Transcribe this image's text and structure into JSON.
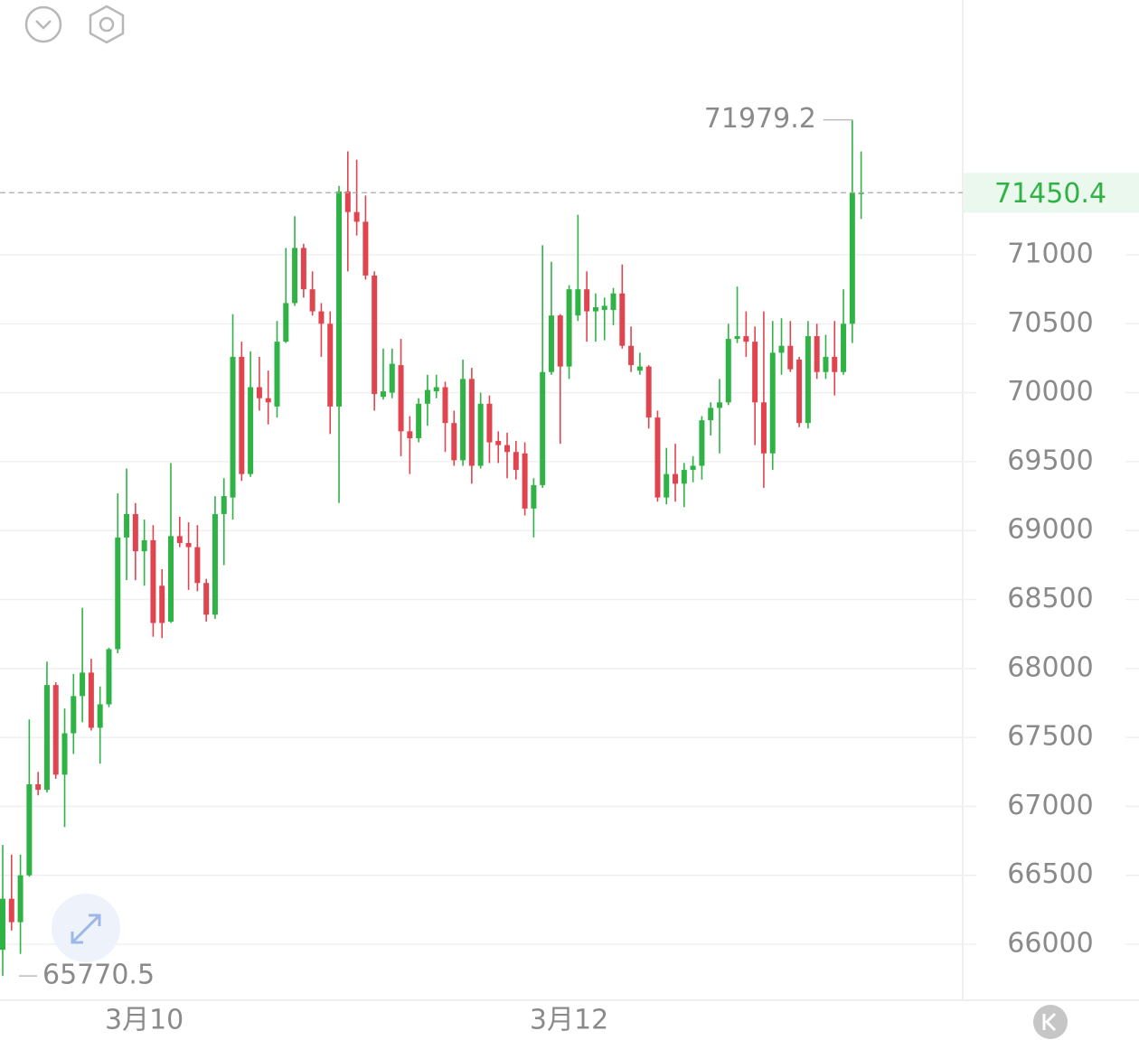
{
  "chart_data": {
    "type": "candlestick",
    "categories": [
      null,
      null,
      null,
      null,
      null,
      null,
      null,
      null,
      null,
      null,
      null,
      null,
      null,
      null,
      null,
      null,
      "3月10",
      null,
      null,
      null,
      null,
      null,
      null,
      null,
      null,
      null,
      null,
      null,
      null,
      null,
      null,
      null,
      null,
      null,
      null,
      null,
      null,
      null,
      null,
      null,
      null,
      null,
      null,
      null,
      null,
      null,
      null,
      null,
      null,
      null,
      null,
      null,
      null,
      null,
      null,
      null,
      null,
      null,
      null,
      null,
      null,
      null,
      null,
      null,
      "3月12",
      null,
      null,
      null,
      null,
      null,
      null,
      null,
      null,
      null,
      null,
      null,
      null,
      null,
      null,
      null,
      null,
      null,
      null,
      null,
      null,
      null,
      null,
      null,
      null,
      null,
      null,
      null,
      null,
      null,
      null,
      null,
      null,
      null
    ],
    "open": [
      65960,
      66330,
      66160,
      66500,
      67160,
      67120,
      67880,
      67230,
      67530,
      67800,
      67970,
      67570,
      67740,
      68140,
      68950,
      69120,
      68850,
      68930,
      68600,
      68340,
      68960,
      68910,
      68880,
      68620,
      68390,
      69120,
      69240,
      70260,
      69410,
      70040,
      69960,
      69900,
      70370,
      70650,
      71050,
      70750,
      70590,
      70500,
      69900,
      71460,
      71310,
      71240,
      70850,
      69970,
      70000,
      70200,
      69720,
      69670,
      69920,
      70010,
      70040,
      69780,
      69510,
      70100,
      69470,
      69920,
      69650,
      69620,
      69570,
      69560,
      69160,
      69330,
      70150,
      70560,
      70190,
      70560,
      70750,
      70590,
      70600,
      70600,
      70720,
      70340,
      70160,
      70190,
      69820,
      69240,
      69410,
      69340,
      69440,
      69470,
      69800,
      69890,
      69930,
      70390,
      70410,
      70370,
      69930,
      69560,
      70290,
      70340,
      70240,
      69780,
      70410,
      70150,
      70260,
      70150,
      70500,
      71450
    ],
    "high": [
      66720,
      66650,
      66650,
      67630,
      67250,
      68050,
      67900,
      67710,
      67960,
      68440,
      68070,
      67870,
      68150,
      69270,
      69450,
      69200,
      69080,
      69040,
      68720,
      69490,
      69100,
      69060,
      69040,
      68650,
      69250,
      69380,
      70570,
      70370,
      70300,
      70260,
      70160,
      70520,
      71050,
      71280,
      71080,
      70880,
      70650,
      70590,
      71500,
      71750,
      71690,
      71430,
      70880,
      70320,
      70320,
      70390,
      69830,
      69960,
      70130,
      70130,
      70080,
      69870,
      70240,
      70180,
      70000,
      69980,
      69720,
      69710,
      69650,
      69640,
      69380,
      71070,
      70950,
      70570,
      70780,
      71290,
      70880,
      70720,
      70690,
      70760,
      70930,
      70480,
      70290,
      70200,
      69870,
      69600,
      69630,
      69490,
      69540,
      69830,
      69930,
      70100,
      70500,
      70770,
      70590,
      70480,
      70590,
      70520,
      70540,
      70520,
      70260,
      70520,
      70500,
      70420,
      70520,
      70750,
      71979.2,
      71750
    ],
    "low": [
      65770.5,
      66100,
      65930,
      66490,
      67080,
      67100,
      67200,
      66850,
      67380,
      67610,
      67550,
      67310,
      67720,
      68110,
      68640,
      68640,
      68600,
      68230,
      68220,
      68330,
      68880,
      68570,
      68560,
      68340,
      68360,
      68750,
      69080,
      69360,
      69390,
      69870,
      69770,
      69820,
      70360,
      70630,
      70690,
      70560,
      70260,
      69700,
      69200,
      70880,
      71140,
      70820,
      69870,
      69950,
      69960,
      69540,
      69410,
      69640,
      69760,
      69960,
      69570,
      69470,
      69470,
      69340,
      69450,
      69490,
      69490,
      69380,
      69370,
      69110,
      68950,
      69310,
      70130,
      69630,
      70100,
      70520,
      70370,
      70370,
      70380,
      70490,
      70320,
      70150,
      70130,
      69740,
      69210,
      69190,
      69210,
      69170,
      69350,
      69370,
      69690,
      69560,
      69910,
      70360,
      70260,
      69620,
      69310,
      69440,
      70130,
      70150,
      69750,
      69740,
      70100,
      70100,
      69980,
      70130,
      70360,
      71260
    ],
    "close": [
      66330,
      66160,
      66500,
      67160,
      67120,
      67880,
      67230,
      67530,
      67800,
      67970,
      67570,
      67740,
      68140,
      68950,
      69120,
      68850,
      68930,
      68330,
      68330,
      68960,
      68910,
      68880,
      68620,
      68390,
      69120,
      69250,
      70260,
      69410,
      70040,
      69960,
      69930,
      70370,
      70650,
      71050,
      70750,
      70590,
      70500,
      69900,
      71460,
      71310,
      71240,
      70850,
      69990,
      70010,
      70210,
      69720,
      69670,
      69920,
      70020,
      70040,
      69780,
      69510,
      70100,
      69470,
      69920,
      69640,
      69620,
      69570,
      69440,
      69160,
      69330,
      70150,
      70560,
      70190,
      70750,
      70750,
      70590,
      70620,
      70630,
      70720,
      70340,
      70200,
      70190,
      69820,
      69240,
      69410,
      69340,
      69440,
      69470,
      69800,
      69890,
      69930,
      70390,
      70410,
      70370,
      69930,
      69560,
      70290,
      70340,
      70170,
      69780,
      70410,
      70150,
      70260,
      70150,
      70500,
      71450,
      71450.4
    ],
    "up_color": "#2fb344",
    "down_color": "#e0454f",
    "ylim": [
      65594,
      72848
    ],
    "yticks": [
      66000,
      66500,
      67000,
      67500,
      68000,
      68500,
      69000,
      69500,
      70000,
      70500,
      71000
    ],
    "grid": true
  }
}
